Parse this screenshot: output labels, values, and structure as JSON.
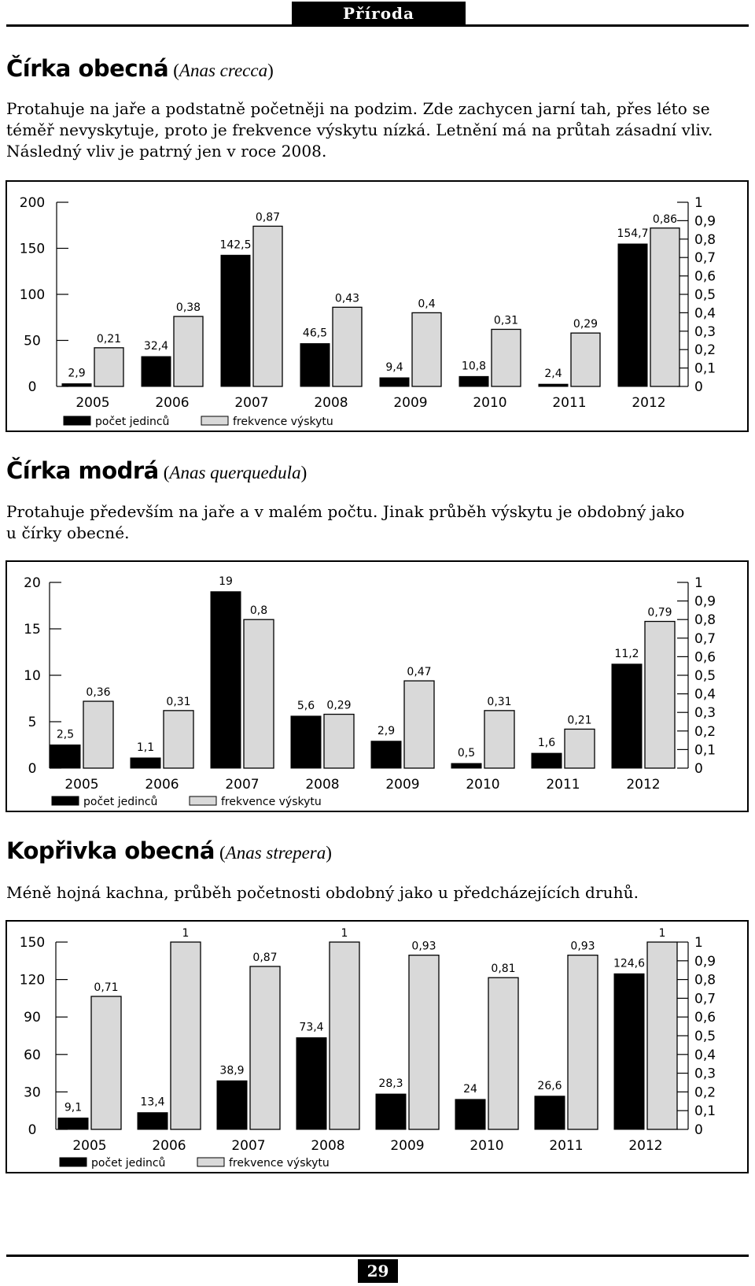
{
  "header": {
    "section_tab": "Příroda"
  },
  "colors": {
    "count_bar": "#000000",
    "frequency_bar": "#d9d9d9"
  },
  "sections": [
    {
      "name": "Čírka obecná",
      "latin_open": "(",
      "latin": "Anas crecca",
      "latin_close": ")",
      "text_lines": [
        "Protahuje na jaře a podstatně početněji na podzim. Zde zachycen jarní tah, přes léto se",
        "téměř nevyskytuje, proto je frekvence výskytu nízká. Letnění má na průtah zásadní vliv.",
        "Následný vliv je patrný jen v roce 2008."
      ]
    },
    {
      "name": "Čírka modrá",
      "latin_open": "(",
      "latin": "Anas querquedula",
      "latin_close": ")",
      "text_lines": [
        "Protahuje především na jaře a v malém počtu. Jinak průběh výskytu je obdobný jako",
        "u čírky obecné."
      ]
    },
    {
      "name": "Kopřivka obecná",
      "latin_open": "(",
      "latin": "Anas strepera",
      "latin_close": ")",
      "text_lines": [
        "Méně hojná kachna, průběh početnosti obdobný jako u předcházejících druhů."
      ]
    }
  ],
  "chart_data": [
    {
      "type": "bar",
      "categories": [
        "2005",
        "2006",
        "2007",
        "2008",
        "2009",
        "2010",
        "2011",
        "2012"
      ],
      "series": [
        {
          "name": "počet jedinců",
          "axis": "left",
          "values": [
            2.9,
            32.4,
            142.5,
            46.5,
            9.4,
            10.8,
            2.4,
            154.7
          ],
          "labels": [
            "2,9",
            "32,4",
            "142,5",
            "46,5",
            "9,4",
            "10,8",
            "2,4",
            "154,7"
          ]
        },
        {
          "name": "frekvence výskytu",
          "axis": "right",
          "values": [
            0.21,
            0.38,
            0.87,
            0.43,
            0.4,
            0.31,
            0.29,
            0.86
          ],
          "labels": [
            "0,21",
            "0,38",
            "0,87",
            "0,43",
            "0,4",
            "0,31",
            "0,29",
            "0,86"
          ]
        }
      ],
      "left_axis": {
        "ylim": [
          0,
          200
        ],
        "ticks": [
          "0",
          "50",
          "100",
          "150",
          "200"
        ]
      },
      "right_axis": {
        "ylim": [
          0,
          1
        ],
        "ticks": [
          "0",
          "0,1",
          "0,2",
          "0,3",
          "0,4",
          "0,5",
          "0,6",
          "0,7",
          "0,8",
          "0,9",
          "1"
        ]
      },
      "legend_placement": "bottom-left",
      "grid": false
    },
    {
      "type": "bar",
      "categories": [
        "2005",
        "2006",
        "2007",
        "2008",
        "2009",
        "2010",
        "2011",
        "2012"
      ],
      "series": [
        {
          "name": "počet jedinců",
          "axis": "left",
          "values": [
            2.5,
            1.1,
            19,
            5.6,
            2.9,
            0.5,
            1.6,
            11.2
          ],
          "labels": [
            "2,5",
            "1,1",
            "19",
            "5,6",
            "2,9",
            "0,5",
            "1,6",
            "11,2"
          ]
        },
        {
          "name": "frekvence výskytu",
          "axis": "right",
          "values": [
            0.36,
            0.31,
            0.8,
            0.29,
            0.47,
            0.31,
            0.21,
            0.79
          ],
          "labels": [
            "0,36",
            "0,31",
            "0,8",
            "0,29",
            "0,47",
            "0,31",
            "0,21",
            "0,79"
          ]
        }
      ],
      "left_axis": {
        "ylim": [
          0,
          20
        ],
        "ticks": [
          "0",
          "5",
          "10",
          "15",
          "20"
        ]
      },
      "right_axis": {
        "ylim": [
          0,
          1
        ],
        "ticks": [
          "0",
          "0,1",
          "0,2",
          "0,3",
          "0,4",
          "0,5",
          "0,6",
          "0,7",
          "0,8",
          "0,9",
          "1"
        ]
      },
      "legend_placement": "bottom-left",
      "grid": false
    },
    {
      "type": "bar",
      "categories": [
        "2005",
        "2006",
        "2007",
        "2008",
        "2009",
        "2010",
        "2011",
        "2012"
      ],
      "series": [
        {
          "name": "počet jedinců",
          "axis": "left",
          "values": [
            9.1,
            13.4,
            38.9,
            73.4,
            28.3,
            24,
            26.6,
            124.6
          ],
          "labels": [
            "9,1",
            "13,4",
            "38,9",
            "73,4",
            "28,3",
            "24",
            "26,6",
            "124,6"
          ]
        },
        {
          "name": "frekvence výskytu",
          "axis": "right",
          "values": [
            0.71,
            1,
            0.87,
            1,
            0.93,
            0.81,
            0.93,
            1
          ],
          "labels": [
            "0,71",
            "1",
            "0,87",
            "1",
            "0,93",
            "0,81",
            "0,93",
            "1"
          ]
        }
      ],
      "left_axis": {
        "ylim": [
          0,
          150
        ],
        "ticks": [
          "0",
          "30",
          "60",
          "90",
          "120",
          "150"
        ]
      },
      "right_axis": {
        "ylim": [
          0,
          1
        ],
        "ticks": [
          "0",
          "0,1",
          "0,2",
          "0,3",
          "0,4",
          "0,5",
          "0,6",
          "0,7",
          "0,8",
          "0,9",
          "1"
        ]
      },
      "legend_placement": "bottom-left",
      "grid": false
    }
  ],
  "footer": {
    "page_number": "29"
  }
}
